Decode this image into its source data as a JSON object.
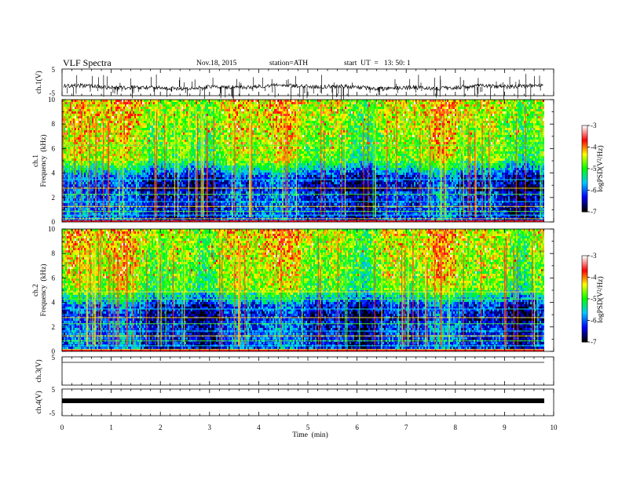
{
  "header": {
    "title": "VLF  Spectra",
    "date": "Nov.18, 2015",
    "station": "station=ATH",
    "start": "start  UT  =   13: 50: 1"
  },
  "chart_data": {
    "type": "heatmap",
    "xlabel": "Time  (min)",
    "xlim": [
      0,
      10
    ],
    "x_ticks": [
      "0",
      "1",
      "2",
      "3",
      "4",
      "5",
      "6",
      "7",
      "8",
      "9",
      "10"
    ],
    "panels": [
      {
        "id": "ch1_waveform",
        "type": "line",
        "ylabel": "ch.1(V)",
        "ylim": [
          -5,
          5
        ],
        "y_ticks": [
          "5",
          "-5"
        ],
        "baseline": 0,
        "noise_amp": 0.6,
        "spikes": "dense"
      },
      {
        "id": "ch1_spectrogram",
        "type": "heatmap",
        "ylabel_top": "ch.1",
        "ylabel": "Frequency  (kHz)",
        "ylim": [
          0,
          10
        ],
        "y_ticks": [
          "0",
          "2",
          "4",
          "6",
          "8",
          "10"
        ]
      },
      {
        "id": "ch2_spectrogram",
        "type": "heatmap",
        "ylabel_top": "ch.2",
        "ylabel": "Frequency  (kHz)",
        "ylim": [
          0,
          10
        ],
        "y_ticks": [
          "0",
          "2",
          "4",
          "6",
          "8",
          "10"
        ]
      },
      {
        "id": "ch3_waveform",
        "type": "line",
        "ylabel": "ch.3(V)",
        "ylim": [
          -5,
          5
        ],
        "y_ticks": [
          "5"
        ],
        "baseline": 0
      },
      {
        "id": "ch4_waveform",
        "type": "line",
        "ylabel": "ch.4(V)",
        "ylim": [
          -5,
          5
        ],
        "y_ticks": [
          "5",
          "-5"
        ],
        "baseline": 0,
        "noise_amp": 0.25
      }
    ],
    "colorbar": {
      "label": "logPSD(V²/Hz)",
      "range": [
        -7,
        -3
      ],
      "ticks": [
        "-3",
        "-4",
        "-5",
        "-6",
        "-7"
      ],
      "colors": [
        "#000000",
        "#0000ff",
        "#00c8ff",
        "#00ff00",
        "#ffff00",
        "#ff0000",
        "#ffffff"
      ]
    },
    "ch1_lines_khz": [
      0.3,
      0.6,
      0.9,
      1.3,
      1.7,
      2.3,
      2.8,
      3.5,
      6.3
    ],
    "ch2_lines_khz": [
      0.2,
      0.5,
      0.9,
      1.3,
      1.7,
      2.3,
      2.8,
      3.5,
      4.3,
      4.9
    ]
  }
}
